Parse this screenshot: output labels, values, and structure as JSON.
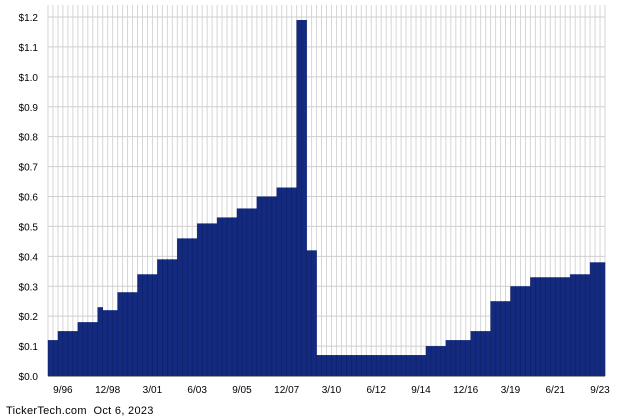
{
  "chart_data": {
    "type": "bar",
    "title": "",
    "xlabel": "",
    "ylabel": "",
    "ylim": [
      0,
      1.2
    ],
    "grid": true,
    "bar_color": "#132a7e",
    "y_ticks": [
      "$0.0",
      "$0.1",
      "$0.2",
      "$0.3",
      "$0.4",
      "$0.5",
      "$0.6",
      "$0.7",
      "$0.8",
      "$0.9",
      "$1.0",
      "$1.1",
      "$1.2"
    ],
    "y_tick_values": [
      0,
      0.1,
      0.2,
      0.3,
      0.4,
      0.5,
      0.6,
      0.7,
      0.8,
      0.9,
      1.0,
      1.1,
      1.2
    ],
    "x_ticks": [
      "9/96",
      "12/98",
      "3/01",
      "6/03",
      "9/05",
      "12/07",
      "3/10",
      "6/12",
      "9/14",
      "12/16",
      "3/19",
      "6/21",
      "9/23"
    ],
    "x_tick_quarter_index": [
      4,
      13,
      22,
      31,
      40,
      49,
      58,
      67,
      76,
      85,
      94,
      103,
      112
    ],
    "steps": [
      {
        "value": 0.12,
        "quarters": 2
      },
      {
        "value": 0.15,
        "quarters": 4
      },
      {
        "value": 0.18,
        "quarters": 4
      },
      {
        "value": 0.23,
        "quarters": 1
      },
      {
        "value": 0.22,
        "quarters": 3
      },
      {
        "value": 0.28,
        "quarters": 4
      },
      {
        "value": 0.34,
        "quarters": 4
      },
      {
        "value": 0.39,
        "quarters": 4
      },
      {
        "value": 0.46,
        "quarters": 4
      },
      {
        "value": 0.51,
        "quarters": 4
      },
      {
        "value": 0.53,
        "quarters": 4
      },
      {
        "value": 0.56,
        "quarters": 4
      },
      {
        "value": 0.6,
        "quarters": 4
      },
      {
        "value": 0.63,
        "quarters": 4
      },
      {
        "value": 1.19,
        "quarters": 2
      },
      {
        "value": 0.42,
        "quarters": 2
      },
      {
        "value": 0.07,
        "quarters": 22
      },
      {
        "value": 0.1,
        "quarters": 4
      },
      {
        "value": 0.12,
        "quarters": 5
      },
      {
        "value": 0.15,
        "quarters": 4
      },
      {
        "value": 0.25,
        "quarters": 4
      },
      {
        "value": 0.3,
        "quarters": 4
      },
      {
        "value": 0.33,
        "quarters": 8
      },
      {
        "value": 0.34,
        "quarters": 4
      },
      {
        "value": 0.38,
        "quarters": 3
      }
    ]
  },
  "footer": {
    "source": "TickerTech.com",
    "date": "Oct 6, 2023"
  }
}
